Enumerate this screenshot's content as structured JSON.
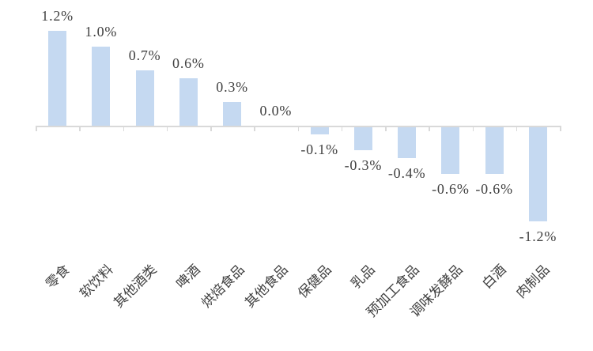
{
  "chart_data": {
    "type": "bar",
    "title": "",
    "xlabel": "",
    "ylabel": "",
    "categories": [
      "零食",
      "软饮料",
      "其他酒类",
      "啤酒",
      "烘焙食品",
      "其他食品",
      "保健品",
      "乳品",
      "预加工食品",
      "调味发酵品",
      "白酒",
      "肉制品"
    ],
    "values": [
      1.2,
      1.0,
      0.7,
      0.6,
      0.3,
      0.0,
      -0.1,
      -0.3,
      -0.4,
      -0.6,
      -0.6,
      -1.2
    ],
    "value_labels": [
      "1.2%",
      "1.0%",
      "0.7%",
      "0.6%",
      "0.3%",
      "0.0%",
      "-0.1%",
      "-0.3%",
      "-0.4%",
      "-0.6%",
      "-0.6%",
      "-1.2%"
    ],
    "unit": "%",
    "ylim": [
      -1.5,
      1.5
    ],
    "grid": false,
    "legend": false,
    "category_label_rotation_deg": 45,
    "colors": {
      "bar": "#c5d9f1",
      "axis": "#d9d9d9",
      "text": "#404040"
    },
    "background": "#ffffff"
  }
}
